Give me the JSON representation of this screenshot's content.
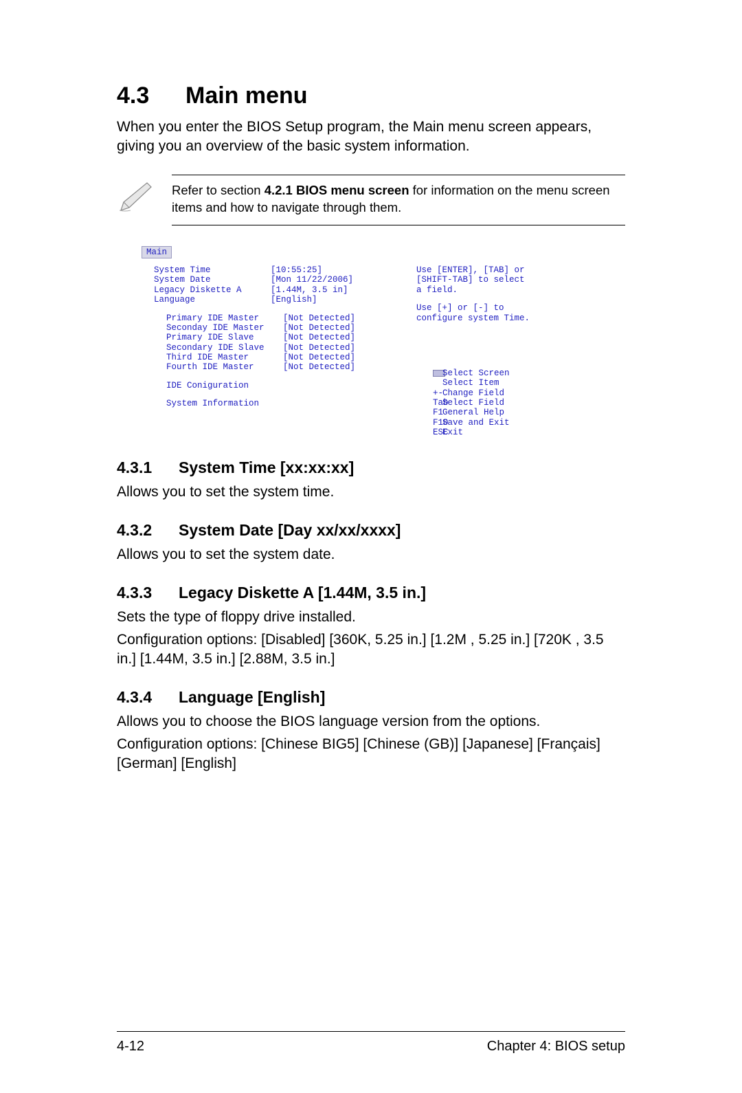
{
  "page": {
    "heading_number": "4.3",
    "heading_title": "Main menu",
    "intro_text": "When you enter the BIOS Setup program, the Main menu screen appears, giving you an overview of the basic system information.",
    "note_prefix": "Refer to section ",
    "note_bold": "4.2.1  BIOS menu screen",
    "note_suffix": " for information on the menu screen items and how to navigate through them."
  },
  "bios": {
    "tab_label": "Main",
    "rows_top": [
      {
        "k": "System Time",
        "v": "[10:55:25]"
      },
      {
        "k": "System Date",
        "v": "[Mon 11/22/2006]"
      },
      {
        "k": "Legacy Diskette A",
        "v": "[1.44M, 3.5 in]"
      },
      {
        "k": "Language",
        "v": "[English]"
      }
    ],
    "rows_ide": [
      {
        "k": "Primary IDE Master",
        "v": "[Not Detected]"
      },
      {
        "k": "Seconday IDE Master",
        "v": "[Not Detected]"
      },
      {
        "k": "Primary IDE Slave",
        "v": "[Not Detected]"
      },
      {
        "k": "Secondary IDE Slave",
        "v": "[Not Detected]"
      },
      {
        "k": "Third IDE Master",
        "v": "[Not Detected]"
      },
      {
        "k": "Fourth IDE Master",
        "v": "[Not Detected]"
      }
    ],
    "rows_bottom": [
      {
        "k": "IDE Coniguration"
      },
      {
        "k": "System Information"
      }
    ],
    "help_line1": "Use [ENTER], [TAB] or",
    "help_line2": "[SHIFT-TAB] to select",
    "help_line3": "a field.",
    "help_line4": "Use [+] or [-] to",
    "help_line5": "configure system Time.",
    "nav": [
      {
        "key": "",
        "label": "Select Screen",
        "icon": true
      },
      {
        "key": "",
        "label": "Select Item"
      },
      {
        "key": "+-",
        "label": "Change Field"
      },
      {
        "key": "Tab",
        "label": "Select Field"
      },
      {
        "key": "F1",
        "label": "General Help"
      },
      {
        "key": "F10",
        "label": "Save and Exit"
      },
      {
        "key": "ESC",
        "label": "Exit"
      }
    ],
    "text_color": "#2020c0",
    "tab_bg": "#d8d8e8",
    "font_family": "Courier New"
  },
  "sections": [
    {
      "num": "4.3.1",
      "title": "System Time [xx:xx:xx]",
      "body": "Allows you to set the system time."
    },
    {
      "num": "4.3.2",
      "title": "System Date [Day xx/xx/xxxx]",
      "body": "Allows you to set the system date."
    },
    {
      "num": "4.3.3",
      "title": "Legacy Diskette A [1.44M, 3.5 in.]",
      "body": "Sets the type of floppy drive installed.\nConfiguration options: [Disabled] [360K, 5.25 in.] [1.2M , 5.25 in.] [720K , 3.5 in.] [1.44M, 3.5 in.] [2.88M, 3.5 in.]"
    },
    {
      "num": "4.3.4",
      "title": "Language [English]",
      "body": "Allows you to choose the BIOS language version from the options.\nConfiguration options: [Chinese BIG5] [Chinese (GB)] [Japanese] [Français] [German] [English]"
    }
  ],
  "footer": {
    "left": "4-12",
    "right": "Chapter 4: BIOS setup"
  }
}
